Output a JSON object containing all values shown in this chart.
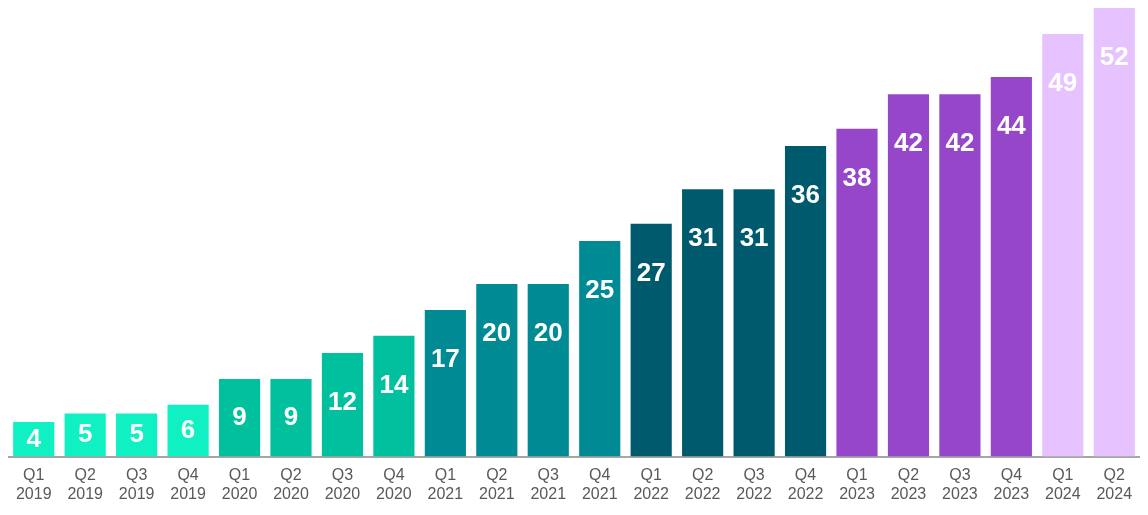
{
  "chart_data": {
    "type": "bar",
    "categories": [
      "Q1 2019",
      "Q2 2019",
      "Q3 2019",
      "Q4 2019",
      "Q1 2020",
      "Q2 2020",
      "Q3 2020",
      "Q4 2020",
      "Q1 2021",
      "Q2 2021",
      "Q3 2021",
      "Q4 2021",
      "Q1 2022",
      "Q2 2022",
      "Q3 2022",
      "Q4 2022",
      "Q1 2023",
      "Q2 2023",
      "Q3 2023",
      "Q4 2023",
      "Q1 2024",
      "Q2 2024"
    ],
    "values": [
      4,
      5,
      5,
      6,
      9,
      9,
      12,
      14,
      17,
      20,
      20,
      25,
      27,
      31,
      31,
      36,
      38,
      42,
      42,
      44,
      49,
      52
    ],
    "colors": [
      "#0ff0c3",
      "#0ff0c3",
      "#0ff0c3",
      "#0ff0c3",
      "#00c09e",
      "#00c09e",
      "#00c09e",
      "#00c09e",
      "#008a94",
      "#008a94",
      "#008a94",
      "#008a94",
      "#005a6e",
      "#005a6e",
      "#005a6e",
      "#005a6e",
      "#9646c8",
      "#9646c8",
      "#9646c8",
      "#9646c8",
      "#e6c3ff",
      "#e6c3ff"
    ],
    "data_labels": true,
    "grid": false,
    "legend": false
  }
}
